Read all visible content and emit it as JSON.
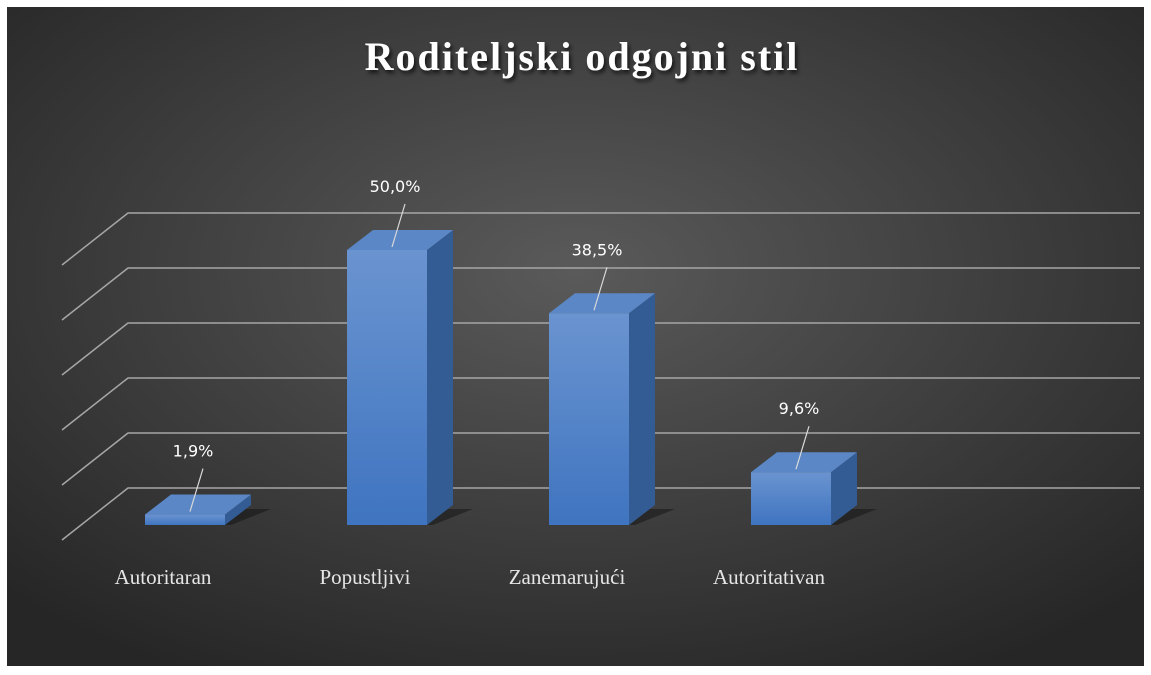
{
  "chart_data": {
    "type": "bar",
    "title": "Roditeljski odgojni stil",
    "categories": [
      "Autoritaran",
      "Popustljivi",
      "Zanemarujući",
      "Autoritativan"
    ],
    "values": [
      1.9,
      50.0,
      38.5,
      9.6
    ],
    "value_labels": [
      "1,9%",
      "50,0%",
      "38,5%",
      "9,6%"
    ],
    "color": "#4a7fc8",
    "ylim": [
      0,
      50
    ],
    "yticks": [
      0,
      10,
      20,
      30,
      40,
      50
    ],
    "grid": true
  }
}
